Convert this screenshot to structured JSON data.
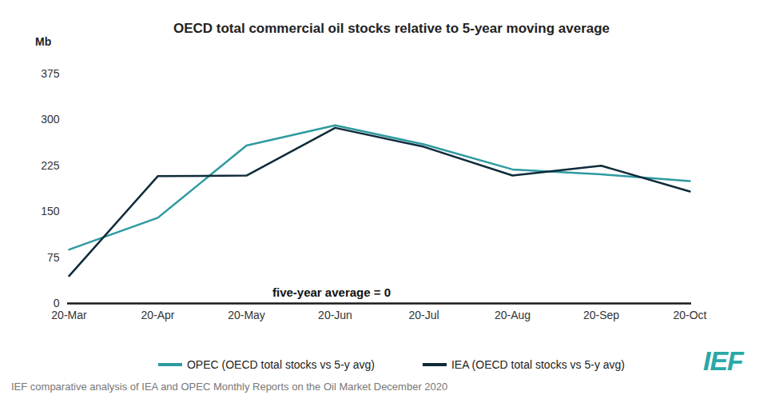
{
  "chart_data": {
    "type": "line",
    "title": "OECD total commercial oil stocks relative to 5-year moving average",
    "y_label": "Mb",
    "categories": [
      "20-Mar",
      "20-Apr",
      "20-May",
      "20-Jun",
      "20-Jul",
      "20-Aug",
      "20-Sep",
      "20-Oct"
    ],
    "series": [
      {
        "name": "OPEC (OECD total stocks vs 5-y avg)",
        "color": "#2e9aa0",
        "values": [
          88,
          140,
          258,
          291,
          260,
          219,
          211,
          200
        ]
      },
      {
        "name": "IEA (OECD total stocks vs 5-y avg)",
        "color": "#0f2b3a",
        "values": [
          45,
          208,
          209,
          287,
          256,
          209,
          225,
          183
        ]
      }
    ],
    "ylim": [
      0,
      375
    ],
    "yticks": [
      0,
      75,
      150,
      225,
      300,
      375
    ],
    "grid": false,
    "legend": "bottom",
    "annotations": [
      {
        "text": "five-year average = 0",
        "y": 0
      }
    ],
    "caption": "IEF comparative analysis of IEA and OPEC Monthly Reports on the Oil Market December 2020",
    "logo": "IEF"
  }
}
